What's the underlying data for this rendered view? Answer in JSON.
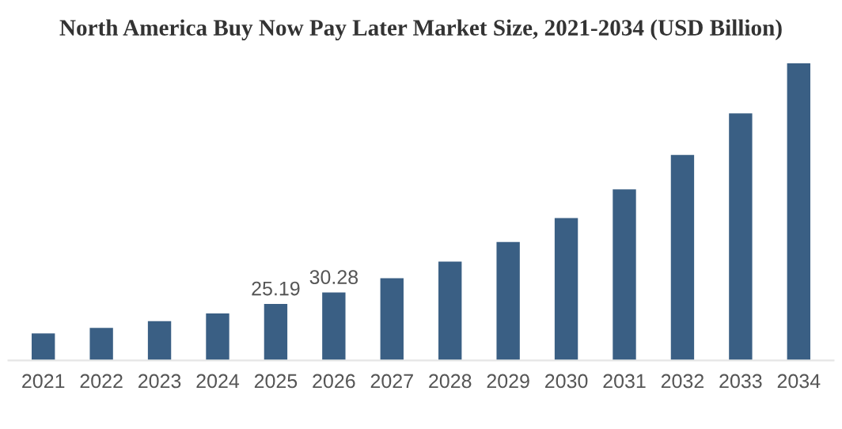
{
  "chart_data": {
    "type": "bar",
    "title": "North America Buy Now Pay Later Market Size, 2021-2034 (USD Billion)",
    "categories": [
      "2021",
      "2022",
      "2023",
      "2024",
      "2025",
      "2026",
      "2027",
      "2028",
      "2029",
      "2030",
      "2031",
      "2032",
      "2033",
      "2034"
    ],
    "values": [
      12.0,
      14.5,
      17.5,
      20.9,
      25.19,
      30.28,
      36.6,
      44.0,
      52.8,
      63.4,
      76.2,
      91.6,
      110.1,
      132.4
    ],
    "value_labels": [
      null,
      null,
      null,
      null,
      "25.19",
      "30.28",
      null,
      null,
      null,
      null,
      null,
      null,
      null,
      null
    ],
    "color": "#3a5f84",
    "grid": false,
    "legend": false
  }
}
